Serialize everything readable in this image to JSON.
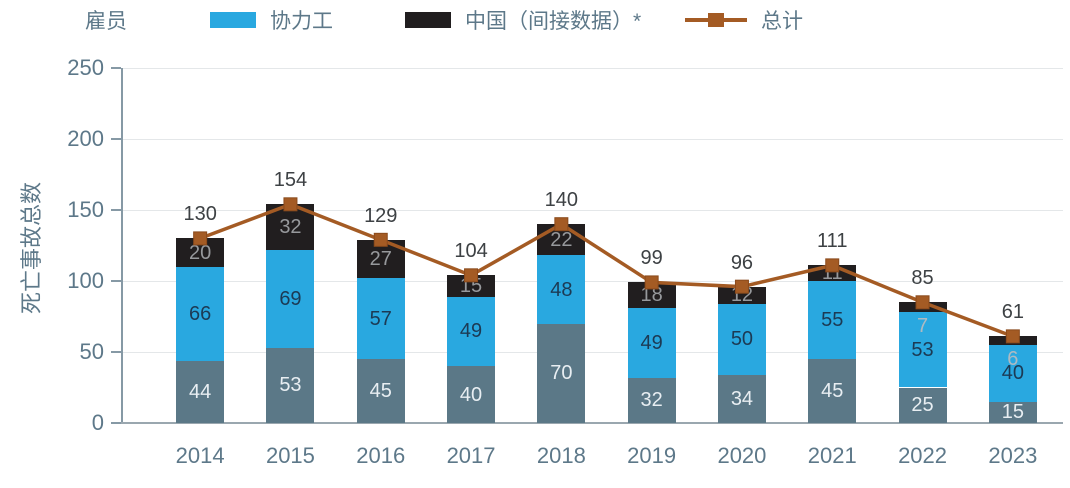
{
  "legend": {
    "employee": "雇员",
    "contractor": "协力工",
    "china": "中国（间接数据）*",
    "total": "总计"
  },
  "y_axis": {
    "title": "死亡事故总数",
    "ticks": [
      0,
      50,
      100,
      150,
      200,
      250
    ]
  },
  "chart_data": {
    "type": "bar",
    "stacked": true,
    "title": "",
    "xlabel": "",
    "ylabel": "死亡事故总数",
    "ylim": [
      0,
      250
    ],
    "grid": true,
    "legend_position": "top",
    "categories": [
      "2014",
      "2015",
      "2016",
      "2017",
      "2018",
      "2019",
      "2020",
      "2021",
      "2022",
      "2023"
    ],
    "series": [
      {
        "key": "employee",
        "name": "雇员",
        "color": "#5b7887",
        "label_color": "#e8eef2",
        "values": [
          44,
          53,
          45,
          40,
          70,
          32,
          34,
          45,
          25,
          15
        ]
      },
      {
        "key": "contractor",
        "name": "协力工",
        "color": "#29a8e0",
        "label_color": "#1c3a54",
        "values": [
          66,
          69,
          57,
          49,
          48,
          49,
          50,
          55,
          53,
          40
        ]
      },
      {
        "key": "china-indirect",
        "name": "中国（间接数据）*",
        "color": "#211e1f",
        "label_color": "#97999c",
        "values": [
          20,
          32,
          27,
          15,
          22,
          18,
          12,
          11,
          7,
          6
        ]
      }
    ],
    "line_series": {
      "key": "total",
      "name": "总计",
      "color": "#a45b24",
      "marker_border": "#8a4a1c",
      "values": [
        130,
        154,
        129,
        104,
        140,
        99,
        96,
        111,
        85,
        61
      ]
    },
    "small_label_color": "#aebac2"
  }
}
